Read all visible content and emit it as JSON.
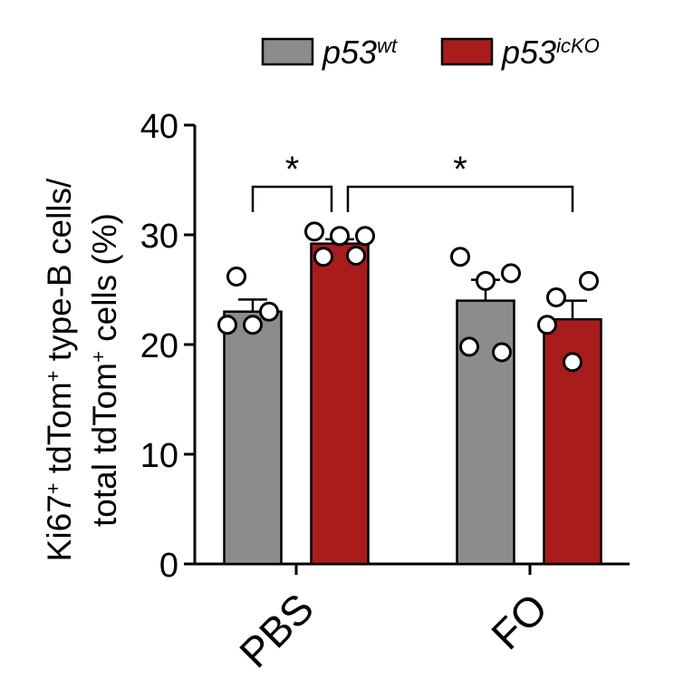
{
  "chart_data": {
    "type": "bar",
    "categories": [
      "PBS",
      "FO"
    ],
    "series": [
      {
        "name_base": "p53",
        "name_sup": "wt",
        "color": "#8c8c8c",
        "means": [
          23.0,
          24.0
        ],
        "sem": [
          1.1,
          1.9
        ],
        "points": [
          [
            26.2,
            23.0,
            21.8,
            21.8
          ],
          [
            28.0,
            25.8,
            26.5,
            19.8,
            19.3
          ]
        ]
      },
      {
        "name_base": "p53",
        "name_sup": "icKO",
        "color": "#a81c1c",
        "means": [
          29.2,
          22.3
        ],
        "sem": [
          0.4,
          1.7
        ],
        "points": [
          [
            30.3,
            29.9,
            29.9,
            28.0,
            28.1
          ],
          [
            24.3,
            25.8,
            21.8,
            18.4
          ]
        ]
      }
    ],
    "yticks": [
      0,
      10,
      20,
      30,
      40
    ],
    "ylim": [
      0,
      40
    ],
    "ylabel_parts": [
      {
        "text": "Ki67",
        "sup": "+"
      },
      {
        "text": " tdTom",
        "sup": "+"
      },
      {
        "text": " type-B cells/"
      }
    ],
    "ylabel_parts2": [
      {
        "text": "total tdTom",
        "sup": "+"
      },
      {
        "text": " cells (%)"
      }
    ],
    "significance": [
      {
        "label": "*",
        "from": "PBS.p53wt",
        "to": "PBS.p53icKO"
      },
      {
        "label": "*",
        "from": "PBS.p53icKO",
        "to": "FO.p53icKO"
      }
    ]
  }
}
